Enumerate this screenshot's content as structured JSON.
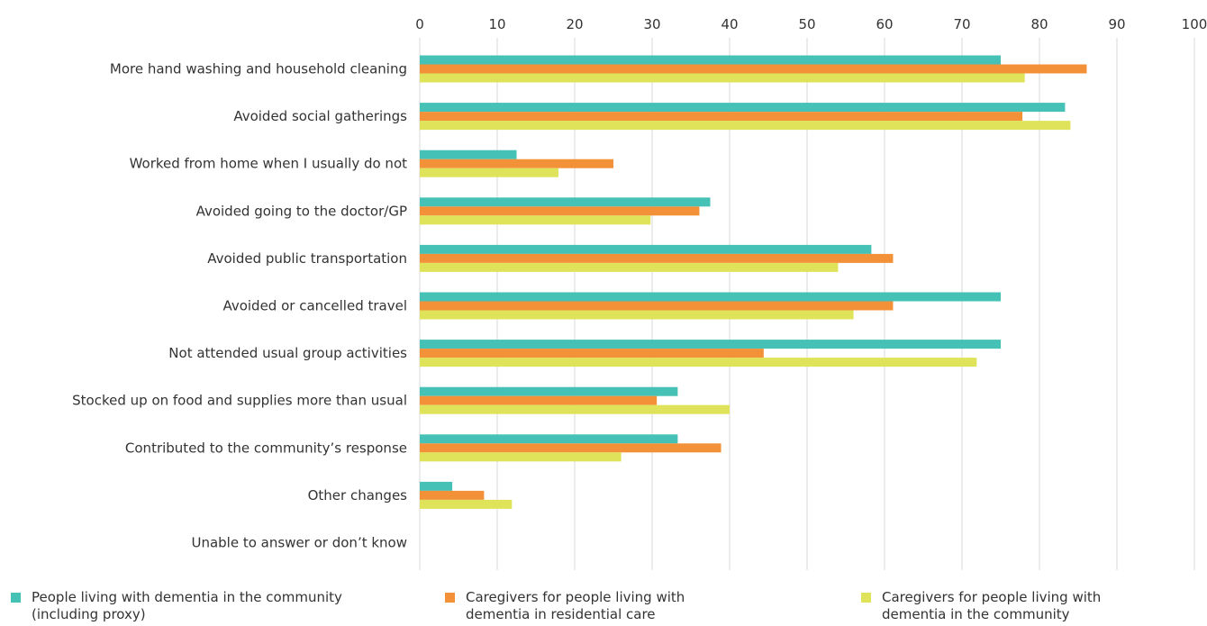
{
  "colors": {
    "series_0": "#45c1b5",
    "series_1": "#f39139",
    "series_2": "#dfe35a",
    "grid": "#d8d8d8",
    "text": "#333333"
  },
  "chart_data": {
    "type": "bar",
    "orientation": "horizontal",
    "grid": true,
    "legend_position": "bottom",
    "xlim": [
      0,
      100
    ],
    "xticks": [
      0,
      10,
      20,
      30,
      40,
      50,
      60,
      70,
      80,
      90,
      100
    ],
    "xtick_labels": [
      "0",
      "10",
      "20",
      "30",
      "40",
      "50",
      "60",
      "70",
      "80",
      "90",
      "100"
    ],
    "categories": [
      "More hand washing and household cleaning",
      "Avoided social gatherings",
      "Worked from home when I usually do not",
      "Avoided going to the doctor/GP",
      "Avoided public transportation",
      "Avoided or cancelled travel",
      "Not attended usual group activities",
      "Stocked up on food and supplies more than usual",
      "Contributed to the community’s response",
      "Other changes",
      "Unable to answer or don’t know"
    ],
    "series": [
      {
        "name": "People living with dementia in the community (including proxy)",
        "name_lines": [
          "People living with dementia in the community",
          "(including proxy)"
        ],
        "values": [
          75,
          83.3,
          12.5,
          37.5,
          58.3,
          75,
          75,
          33.3,
          33.3,
          4.2,
          0
        ]
      },
      {
        "name": "Caregivers for people living with dementia in residential care",
        "name_lines": [
          "Caregivers for people living with",
          "dementia in residential care"
        ],
        "values": [
          86.1,
          77.8,
          25,
          36.1,
          61.1,
          61.1,
          44.4,
          30.6,
          38.9,
          8.3,
          0
        ]
      },
      {
        "name": "Caregivers for people living with dementia in the community",
        "name_lines": [
          "Caregivers for people living with",
          "dementia in the community"
        ],
        "values": [
          78.1,
          84,
          17.9,
          29.8,
          54,
          56,
          71.9,
          40,
          26,
          11.9,
          0
        ]
      }
    ]
  }
}
